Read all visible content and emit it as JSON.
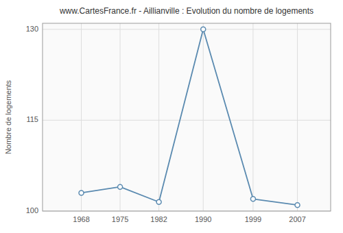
{
  "chart_data": {
    "type": "line",
    "title": "www.CartesFrance.fr - Aillianville : Evolution du nombre de logements",
    "ylabel": "Nombre de logements",
    "x": [
      1968,
      1975,
      1982,
      1990,
      1999,
      2007
    ],
    "values": [
      103,
      104,
      101.5,
      130,
      102,
      101
    ],
    "color": "#5a8ab0",
    "marker": "circle",
    "xlim": [
      1961,
      2013
    ],
    "xticks": [
      1968,
      1975,
      1982,
      1990,
      1999,
      2007
    ],
    "ylim": [
      100,
      131
    ],
    "yticks": [
      100,
      115,
      130
    ],
    "grid": true
  }
}
